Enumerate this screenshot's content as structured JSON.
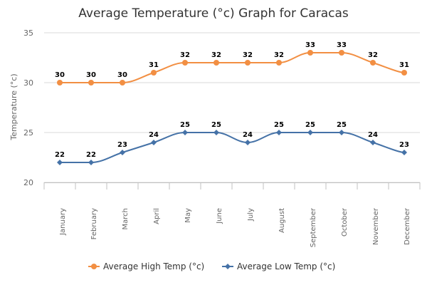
{
  "chart_data": {
    "type": "line",
    "title": "Average Temperature (°c) Graph for Caracas",
    "xlabel": "",
    "ylabel": "Temperature (°c)",
    "ylim": [
      20,
      35
    ],
    "yticks": [
      20,
      25,
      30,
      35
    ],
    "categories": [
      "January",
      "February",
      "March",
      "April",
      "May",
      "June",
      "July",
      "August",
      "September",
      "October",
      "November",
      "December"
    ],
    "grid": "horizontal",
    "legend_position": "bottom-center",
    "series": [
      {
        "name": "Average High Temp (°c)",
        "color": "#f28f43",
        "marker": "circle",
        "values": [
          30,
          30,
          30,
          31,
          32,
          32,
          32,
          32,
          33,
          33,
          32,
          31
        ]
      },
      {
        "name": "Average Low Temp (°c)",
        "color": "#4572a7",
        "marker": "diamond",
        "values": [
          22,
          22,
          23,
          24,
          25,
          25,
          24,
          25,
          25,
          25,
          24,
          23
        ]
      }
    ]
  }
}
